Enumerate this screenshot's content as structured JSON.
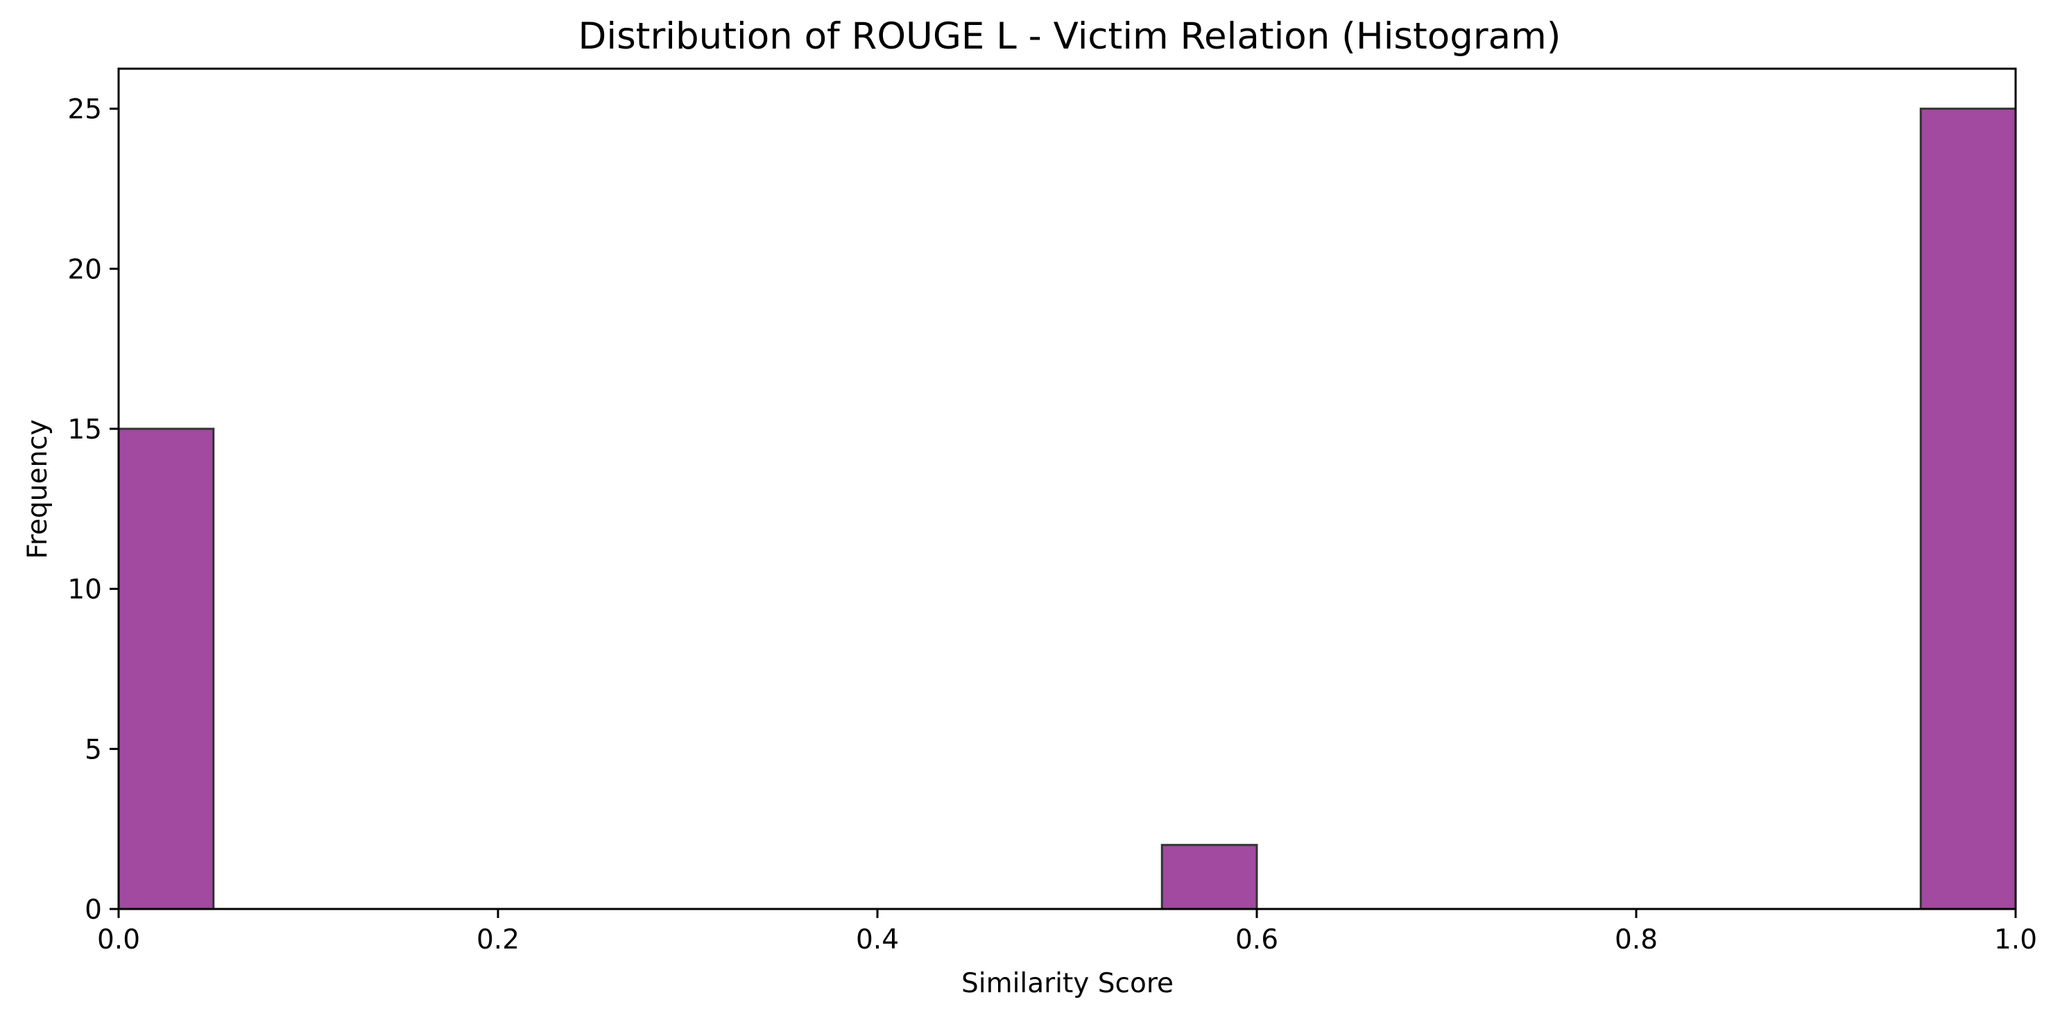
{
  "chart_data": {
    "type": "bar",
    "title": "Distribution of ROUGE L - Victim Relation (Histogram)",
    "xlabel": "Similarity Score",
    "ylabel": "Frequency",
    "xlim": [
      0.0,
      1.0
    ],
    "ylim": [
      0,
      26.25
    ],
    "x_ticks": [
      "0.0",
      "0.2",
      "0.4",
      "0.6",
      "0.8",
      "1.0"
    ],
    "y_ticks": [
      "0",
      "5",
      "10",
      "15",
      "20",
      "25"
    ],
    "grid": false,
    "bar_color": "#a14aa0",
    "edge_color": "#333333",
    "bins": [
      {
        "start": 0.0,
        "end": 0.05,
        "count": 15
      },
      {
        "start": 0.55,
        "end": 0.6,
        "count": 2
      },
      {
        "start": 0.95,
        "end": 1.0,
        "count": 25
      }
    ]
  }
}
